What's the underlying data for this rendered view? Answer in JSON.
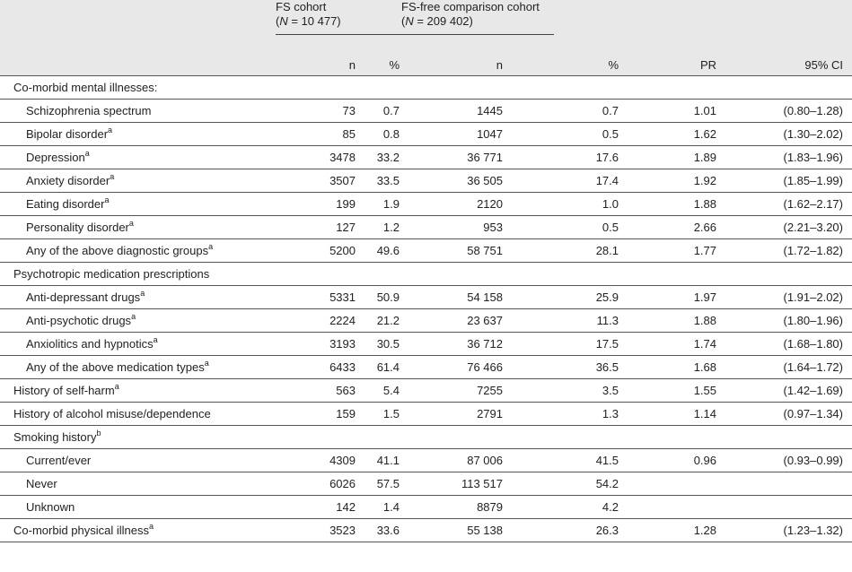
{
  "headers": {
    "fs_title": "FS cohort",
    "fs_n_label": "N",
    "fs_n_value": " = 10 477)",
    "free_title": "FS-free comparison cohort",
    "free_n_label": "N",
    "free_n_value": " = 209 402)",
    "open_paren": "(",
    "n": "n",
    "pct": "%",
    "pr": "PR",
    "ci": "95% CI"
  },
  "rows": [
    {
      "label": "Co-morbid mental illnesses:",
      "sup": "",
      "indent": false,
      "section": true,
      "n1": "",
      "p1": "",
      "n2": "",
      "p2": "",
      "pr": "",
      "ci": ""
    },
    {
      "label": "Schizophrenia spectrum",
      "sup": "",
      "indent": true,
      "n1": "73",
      "p1": "0.7",
      "n2": "1445",
      "p2": "0.7",
      "pr": "1.01",
      "ci": "(0.80–1.28)"
    },
    {
      "label": "Bipolar disorder",
      "sup": "a",
      "indent": true,
      "n1": "85",
      "p1": "0.8",
      "n2": "1047",
      "p2": "0.5",
      "pr": "1.62",
      "ci": "(1.30–2.02)"
    },
    {
      "label": "Depression",
      "sup": "a",
      "indent": true,
      "n1": "3478",
      "p1": "33.2",
      "n2": "36 771",
      "p2": "17.6",
      "pr": "1.89",
      "ci": "(1.83–1.96)"
    },
    {
      "label": "Anxiety disorder",
      "sup": "a",
      "indent": true,
      "n1": "3507",
      "p1": "33.5",
      "n2": "36 505",
      "p2": "17.4",
      "pr": "1.92",
      "ci": "(1.85–1.99)"
    },
    {
      "label": "Eating disorder",
      "sup": "a",
      "indent": true,
      "n1": "199",
      "p1": "1.9",
      "n2": "2120",
      "p2": "1.0",
      "pr": "1.88",
      "ci": "(1.62–2.17)"
    },
    {
      "label": "Personality disorder",
      "sup": "a",
      "indent": true,
      "n1": "127",
      "p1": "1.2",
      "n2": "953",
      "p2": "0.5",
      "pr": "2.66",
      "ci": "(2.21–3.20)"
    },
    {
      "label": "Any of the above diagnostic groups",
      "sup": "a",
      "indent": true,
      "n1": "5200",
      "p1": "49.6",
      "n2": "58 751",
      "p2": "28.1",
      "pr": "1.77",
      "ci": "(1.72–1.82)"
    },
    {
      "label": "Psychotropic medication prescriptions",
      "sup": "",
      "indent": false,
      "section": true,
      "n1": "",
      "p1": "",
      "n2": "",
      "p2": "",
      "pr": "",
      "ci": ""
    },
    {
      "label": "Anti-depressant drugs",
      "sup": "a",
      "indent": true,
      "n1": "5331",
      "p1": "50.9",
      "n2": "54 158",
      "p2": "25.9",
      "pr": "1.97",
      "ci": "(1.91–2.02)"
    },
    {
      "label": "Anti-psychotic drugs",
      "sup": "a",
      "indent": true,
      "n1": "2224",
      "p1": "21.2",
      "n2": "23 637",
      "p2": "11.3",
      "pr": "1.88",
      "ci": "(1.80–1.96)"
    },
    {
      "label": "Anxiolitics and hypnotics",
      "sup": "a",
      "indent": true,
      "n1": "3193",
      "p1": "30.5",
      "n2": "36 712",
      "p2": "17.5",
      "pr": "1.74",
      "ci": "(1.68–1.80)"
    },
    {
      "label": "Any of the above medication types",
      "sup": "a",
      "indent": true,
      "n1": "6433",
      "p1": "61.4",
      "n2": "76 466",
      "p2": "36.5",
      "pr": "1.68",
      "ci": "(1.64–1.72)"
    },
    {
      "label": "History of self-harm",
      "sup": "a",
      "indent": false,
      "n1": "563",
      "p1": "5.4",
      "n2": "7255",
      "p2": "3.5",
      "pr": "1.55",
      "ci": "(1.42–1.69)"
    },
    {
      "label": "History of alcohol misuse/dependence",
      "sup": "",
      "indent": false,
      "n1": "159",
      "p1": "1.5",
      "n2": "2791",
      "p2": "1.3",
      "pr": "1.14",
      "ci": "(0.97–1.34)"
    },
    {
      "label": "Smoking history",
      "sup": "b",
      "indent": false,
      "section": true,
      "n1": "",
      "p1": "",
      "n2": "",
      "p2": "",
      "pr": "",
      "ci": ""
    },
    {
      "label": "Current/ever",
      "sup": "",
      "indent": true,
      "n1": "4309",
      "p1": "41.1",
      "n2": "87 006",
      "p2": "41.5",
      "pr": "0.96",
      "ci": "(0.93–0.99)"
    },
    {
      "label": "Never",
      "sup": "",
      "indent": true,
      "n1": "6026",
      "p1": "57.5",
      "n2": "113 517",
      "p2": "54.2",
      "pr": "",
      "ci": ""
    },
    {
      "label": "Unknown",
      "sup": "",
      "indent": true,
      "n1": "142",
      "p1": "1.4",
      "n2": "8879",
      "p2": "4.2",
      "pr": "",
      "ci": ""
    },
    {
      "label": "Co-morbid physical illness",
      "sup": "a",
      "indent": false,
      "n1": "3523",
      "p1": "33.6",
      "n2": "55 138",
      "p2": "26.3",
      "pr": "1.28",
      "ci": "(1.23–1.32)"
    }
  ]
}
